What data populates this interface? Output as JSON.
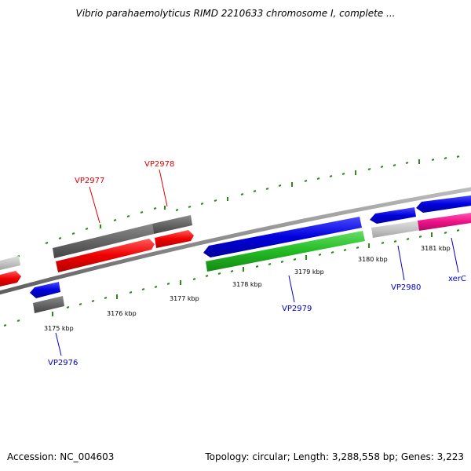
{
  "title": "Vibrio parahaemolyticus RIMD 2210633 chromosome I, complete ...",
  "footer": {
    "accession": "Accession: NC_004603",
    "summary": "Topology: circular; Length: 3,288,558 bp; Genes: 3,223"
  },
  "colors": {
    "backbone": "#8c8c8c",
    "tick": "#2a8a1a",
    "red": "#ee0000",
    "blue": "#0000dd",
    "green": "#22bb22",
    "dark_gray": "#666666",
    "light_gray": "#c4c4c4",
    "magenta": "#ee1188",
    "label_red": "#e00000",
    "label_blue": "#0000cc"
  },
  "scale_labels": [
    "3175 kbp",
    "3176 kbp",
    "3177 kbp",
    "3178 kbp",
    "3179 kbp",
    "3180 kbp",
    "3181 kbp"
  ],
  "gene_labels": [
    "VP2976",
    "VP2977",
    "VP2978",
    "VP2979",
    "VP2980",
    "xerC"
  ]
}
